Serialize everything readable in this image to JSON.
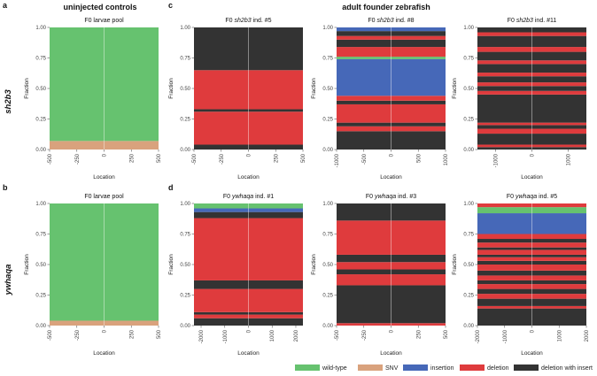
{
  "figure": {
    "letters": [
      "a",
      "b",
      "c",
      "d"
    ],
    "group_titles": {
      "controls": "uninjected controls",
      "founders": "adult founder zebrafish"
    },
    "row_labels": [
      "sh2b3",
      "ywhaqa"
    ],
    "legend": [
      {
        "label": "wild-type",
        "color": "#66c26f"
      },
      {
        "label": "SNV",
        "color": "#d9a27d"
      },
      {
        "label": "insertion",
        "color": "#4668b8"
      },
      {
        "label": "deletion",
        "color": "#df3b3d"
      },
      {
        "label": "deletion with insert",
        "color": "#333333"
      }
    ]
  },
  "chart_data": [
    {
      "type": "area",
      "row": 0,
      "col": 0,
      "title_plain": "F0 larvae pool",
      "title_italic": "",
      "title_suffix": "",
      "xlabel": "Location",
      "ylabel": "Fraction",
      "xlim": [
        -500,
        500
      ],
      "ylim": [
        0,
        1
      ],
      "xticks": [
        -500,
        -250,
        0,
        250,
        500
      ],
      "yticks": [
        0,
        0.25,
        0.5,
        0.75,
        1
      ],
      "ytick_labels": [
        "0.00",
        "0.25",
        "0.50",
        "0.75",
        "1.00"
      ],
      "bands": [
        {
          "category": "SNV",
          "y0": 0,
          "y1": 0.07
        },
        {
          "category": "wild-type",
          "y0": 0.07,
          "y1": 1
        }
      ]
    },
    {
      "type": "area",
      "row": 0,
      "col": 1,
      "title_plain": "F0 ",
      "title_italic": "sh2b3",
      "title_suffix": " ind. #5",
      "xlabel": "Location",
      "ylabel": "Fraction",
      "xlim": [
        -500,
        500
      ],
      "ylim": [
        0,
        1
      ],
      "xticks": [
        -500,
        -250,
        0,
        250,
        500
      ],
      "yticks": [
        0,
        0.25,
        0.5,
        0.75,
        1
      ],
      "ytick_labels": [
        "0.00",
        "0.25",
        "0.50",
        "0.75",
        "1.00"
      ],
      "bands": [
        {
          "category": "deletion with insert",
          "y0": 0,
          "y1": 0.04
        },
        {
          "category": "deletion",
          "y0": 0.04,
          "y1": 0.31
        },
        {
          "category": "deletion with insert",
          "y0": 0.31,
          "y1": 0.33
        },
        {
          "category": "deletion",
          "y0": 0.33,
          "y1": 0.65
        },
        {
          "category": "deletion with insert",
          "y0": 0.65,
          "y1": 1
        }
      ]
    },
    {
      "type": "area",
      "row": 0,
      "col": 2,
      "title_plain": "F0 ",
      "title_italic": "sh2b3",
      "title_suffix": " ind. #8",
      "xlabel": "Location",
      "ylabel": "Fraction",
      "xlim": [
        -1000,
        1000
      ],
      "ylim": [
        0,
        1
      ],
      "xticks": [
        -1000,
        -500,
        0,
        500,
        1000
      ],
      "yticks": [
        0,
        0.25,
        0.5,
        0.75,
        1
      ],
      "ytick_labels": [
        "0.00",
        "0.25",
        "0.50",
        "0.75",
        "1.00"
      ],
      "bands": [
        {
          "category": "deletion with insert",
          "y0": 0,
          "y1": 0.15
        },
        {
          "category": "deletion",
          "y0": 0.15,
          "y1": 0.19
        },
        {
          "category": "deletion with insert",
          "y0": 0.19,
          "y1": 0.22
        },
        {
          "category": "deletion",
          "y0": 0.22,
          "y1": 0.37
        },
        {
          "category": "deletion with insert",
          "y0": 0.37,
          "y1": 0.4
        },
        {
          "category": "deletion",
          "y0": 0.4,
          "y1": 0.44
        },
        {
          "category": "insertion",
          "y0": 0.44,
          "y1": 0.74
        },
        {
          "category": "wild-type",
          "y0": 0.74,
          "y1": 0.76
        },
        {
          "category": "deletion",
          "y0": 0.76,
          "y1": 0.84
        },
        {
          "category": "deletion with insert",
          "y0": 0.84,
          "y1": 0.9
        },
        {
          "category": "deletion",
          "y0": 0.9,
          "y1": 0.93
        },
        {
          "category": "deletion with insert",
          "y0": 0.93,
          "y1": 0.97
        },
        {
          "category": "insertion",
          "y0": 0.97,
          "y1": 1
        }
      ]
    },
    {
      "type": "area",
      "row": 0,
      "col": 3,
      "title_plain": "F0 ",
      "title_italic": "sh2b3",
      "title_suffix": " ind. #11",
      "xlabel": "Location",
      "ylabel": "Fraction",
      "xlim": [
        -1500,
        1500
      ],
      "ylim": [
        0,
        1
      ],
      "xticks": [
        -1000,
        0,
        1000
      ],
      "yticks": [
        0,
        0.25,
        0.5,
        0.75,
        1
      ],
      "ytick_labels": [
        "0.00",
        "0.25",
        "0.50",
        "0.75",
        "1.00"
      ],
      "bands": [
        {
          "category": "deletion with insert",
          "y0": 0,
          "y1": 0.02
        },
        {
          "category": "deletion",
          "y0": 0.02,
          "y1": 0.04
        },
        {
          "category": "deletion with insert",
          "y0": 0.04,
          "y1": 0.13
        },
        {
          "category": "deletion",
          "y0": 0.13,
          "y1": 0.17
        },
        {
          "category": "deletion with insert",
          "y0": 0.17,
          "y1": 0.2
        },
        {
          "category": "deletion",
          "y0": 0.2,
          "y1": 0.22
        },
        {
          "category": "deletion with insert",
          "y0": 0.22,
          "y1": 0.45
        },
        {
          "category": "deletion",
          "y0": 0.45,
          "y1": 0.48
        },
        {
          "category": "deletion with insert",
          "y0": 0.48,
          "y1": 0.52
        },
        {
          "category": "deletion",
          "y0": 0.52,
          "y1": 0.55
        },
        {
          "category": "deletion with insert",
          "y0": 0.55,
          "y1": 0.6
        },
        {
          "category": "deletion",
          "y0": 0.6,
          "y1": 0.63
        },
        {
          "category": "deletion with insert",
          "y0": 0.63,
          "y1": 0.7
        },
        {
          "category": "deletion",
          "y0": 0.7,
          "y1": 0.73
        },
        {
          "category": "deletion with insert",
          "y0": 0.73,
          "y1": 0.8
        },
        {
          "category": "deletion",
          "y0": 0.8,
          "y1": 0.84
        },
        {
          "category": "deletion with insert",
          "y0": 0.84,
          "y1": 0.93
        },
        {
          "category": "deletion",
          "y0": 0.93,
          "y1": 0.96
        },
        {
          "category": "deletion with insert",
          "y0": 0.96,
          "y1": 1
        }
      ]
    },
    {
      "type": "area",
      "row": 1,
      "col": 0,
      "title_plain": "F0 larvae pool",
      "title_italic": "",
      "title_suffix": "",
      "xlabel": "Location",
      "ylabel": "Fraction",
      "xlim": [
        -500,
        500
      ],
      "ylim": [
        0,
        1
      ],
      "xticks": [
        -500,
        -250,
        0,
        250,
        500
      ],
      "yticks": [
        0,
        0.25,
        0.5,
        0.75,
        1
      ],
      "ytick_labels": [
        "0.00",
        "0.25",
        "0.50",
        "0.75",
        "1.00"
      ],
      "bands": [
        {
          "category": "SNV",
          "y0": 0,
          "y1": 0.04
        },
        {
          "category": "wild-type",
          "y0": 0.04,
          "y1": 1
        }
      ]
    },
    {
      "type": "area",
      "row": 1,
      "col": 1,
      "title_plain": "F0 ",
      "title_italic": "ywhaqa",
      "title_suffix": " ind. #1",
      "xlabel": "Location",
      "ylabel": "Fraction",
      "xlim": [
        -2300,
        2300
      ],
      "ylim": [
        0,
        1
      ],
      "xticks": [
        -2000,
        -1000,
        0,
        1000,
        2000
      ],
      "yticks": [
        0,
        0.25,
        0.5,
        0.75,
        1
      ],
      "ytick_labels": [
        "0.00",
        "0.25",
        "0.50",
        "0.75",
        "1.00"
      ],
      "bands": [
        {
          "category": "deletion with insert",
          "y0": 0,
          "y1": 0.06
        },
        {
          "category": "deletion",
          "y0": 0.06,
          "y1": 0.09
        },
        {
          "category": "deletion with insert",
          "y0": 0.09,
          "y1": 0.11
        },
        {
          "category": "deletion",
          "y0": 0.11,
          "y1": 0.3
        },
        {
          "category": "deletion with insert",
          "y0": 0.3,
          "y1": 0.37
        },
        {
          "category": "deletion",
          "y0": 0.37,
          "y1": 0.88
        },
        {
          "category": "deletion with insert",
          "y0": 0.88,
          "y1": 0.93
        },
        {
          "category": "insertion",
          "y0": 0.93,
          "y1": 0.96
        },
        {
          "category": "wild-type",
          "y0": 0.96,
          "y1": 1
        }
      ]
    },
    {
      "type": "area",
      "row": 1,
      "col": 2,
      "title_plain": "F0 ",
      "title_italic": "ywhaqa",
      "title_suffix": " ind. #3",
      "xlabel": "Location",
      "ylabel": "Fraction",
      "xlim": [
        -500,
        500
      ],
      "ylim": [
        0,
        1
      ],
      "xticks": [
        -500,
        -250,
        0,
        250,
        500
      ],
      "yticks": [
        0,
        0.25,
        0.5,
        0.75,
        1
      ],
      "ytick_labels": [
        "0.00",
        "0.25",
        "0.50",
        "0.75",
        "1.00"
      ],
      "bands": [
        {
          "category": "deletion",
          "y0": 0,
          "y1": 0.02
        },
        {
          "category": "deletion with insert",
          "y0": 0.02,
          "y1": 0.33
        },
        {
          "category": "deletion",
          "y0": 0.33,
          "y1": 0.42
        },
        {
          "category": "deletion with insert",
          "y0": 0.42,
          "y1": 0.46
        },
        {
          "category": "deletion",
          "y0": 0.46,
          "y1": 0.52
        },
        {
          "category": "deletion with insert",
          "y0": 0.52,
          "y1": 0.58
        },
        {
          "category": "deletion",
          "y0": 0.58,
          "y1": 0.86
        },
        {
          "category": "deletion with insert",
          "y0": 0.86,
          "y1": 1
        }
      ]
    },
    {
      "type": "area",
      "row": 1,
      "col": 3,
      "title_plain": "F0 ",
      "title_italic": "ywhaqa",
      "title_suffix": " ind. #5",
      "xlabel": "Location",
      "ylabel": "Fraction",
      "xlim": [
        -2000,
        2000
      ],
      "ylim": [
        0,
        1
      ],
      "xticks": [
        -2000,
        -1000,
        0,
        1000,
        2000
      ],
      "yticks": [
        0,
        0.25,
        0.5,
        0.75,
        1
      ],
      "ytick_labels": [
        "0.00",
        "0.25",
        "0.50",
        "0.75",
        "1.00"
      ],
      "bands": [
        {
          "category": "deletion with insert",
          "y0": 0,
          "y1": 0.14
        },
        {
          "category": "deletion",
          "y0": 0.14,
          "y1": 0.16
        },
        {
          "category": "deletion with insert",
          "y0": 0.16,
          "y1": 0.22
        },
        {
          "category": "deletion",
          "y0": 0.22,
          "y1": 0.26
        },
        {
          "category": "deletion with insert",
          "y0": 0.26,
          "y1": 0.3
        },
        {
          "category": "deletion",
          "y0": 0.3,
          "y1": 0.34
        },
        {
          "category": "deletion with insert",
          "y0": 0.34,
          "y1": 0.37
        },
        {
          "category": "deletion",
          "y0": 0.37,
          "y1": 0.41
        },
        {
          "category": "deletion with insert",
          "y0": 0.41,
          "y1": 0.45
        },
        {
          "category": "deletion",
          "y0": 0.45,
          "y1": 0.5
        },
        {
          "category": "deletion with insert",
          "y0": 0.5,
          "y1": 0.53
        },
        {
          "category": "deletion",
          "y0": 0.53,
          "y1": 0.56
        },
        {
          "category": "deletion with insert",
          "y0": 0.56,
          "y1": 0.58
        },
        {
          "category": "deletion",
          "y0": 0.58,
          "y1": 0.62
        },
        {
          "category": "deletion with insert",
          "y0": 0.62,
          "y1": 0.64
        },
        {
          "category": "deletion",
          "y0": 0.64,
          "y1": 0.68
        },
        {
          "category": "deletion with insert",
          "y0": 0.68,
          "y1": 0.71
        },
        {
          "category": "deletion",
          "y0": 0.71,
          "y1": 0.75
        },
        {
          "category": "insertion",
          "y0": 0.75,
          "y1": 0.92
        },
        {
          "category": "wild-type",
          "y0": 0.92,
          "y1": 0.97
        },
        {
          "category": "deletion",
          "y0": 0.97,
          "y1": 1
        }
      ]
    }
  ]
}
